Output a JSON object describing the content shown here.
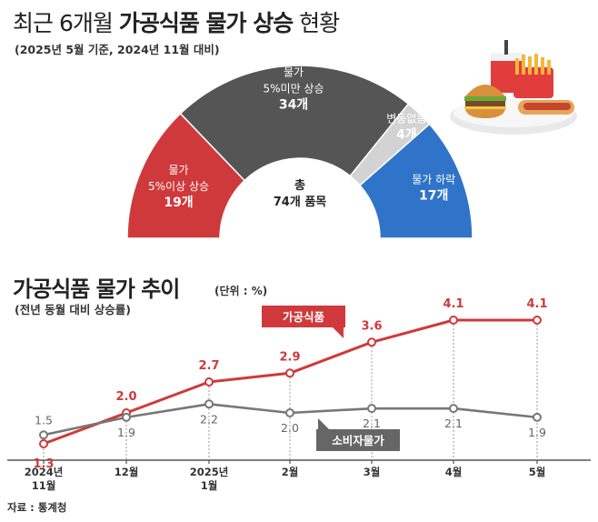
{
  "header": {
    "title_light": "최근 6개월 ",
    "title_bold": "가공식품 물가 상승",
    "title_tail": " 현황",
    "subtitle": "(2025년 5월 기준, 2024년 11월 대비)"
  },
  "donut": {
    "center_line1": "총",
    "center_line2": "74개 품목",
    "segments": [
      {
        "label1": "물가",
        "label2": "5%이상 상승",
        "count": "19개",
        "value": 19,
        "color": "#d0393b"
      },
      {
        "label1": "물가",
        "label2": "5%미만 상승",
        "count": "34개",
        "value": 34,
        "color": "#555555"
      },
      {
        "label1": "변동없음",
        "label2": "",
        "count": "4개",
        "value": 4,
        "color": "#d3d3d3"
      },
      {
        "label1": "물가 하락",
        "label2": "",
        "count": "17개",
        "value": 17,
        "color": "#2f74c8"
      }
    ]
  },
  "trend": {
    "title": "가공식품 물가 추이",
    "unit": "(단위 : %)",
    "subtitle": "(전년 동월 대비 상승률)",
    "source": "자료 : 통계청"
  },
  "chart_data": {
    "type": "line",
    "categories": [
      "2024년\n11월",
      "12월",
      "2025년\n1월",
      "2월",
      "3월",
      "4월",
      "5월"
    ],
    "series": [
      {
        "name": "가공식품",
        "values": [
          1.3,
          2.0,
          2.7,
          2.9,
          3.6,
          4.1,
          4.1
        ],
        "labels": [
          "1.3",
          "2.0",
          "2.7",
          "2.9",
          "3.6",
          "4.1",
          "4.1"
        ],
        "color": "#d0393b"
      },
      {
        "name": "소비자물가",
        "values": [
          1.5,
          1.9,
          2.2,
          2.0,
          2.1,
          2.1,
          1.9
        ],
        "labels": [
          "1.5",
          "1.9",
          "2.2",
          "2.0",
          "2.1",
          "2.1",
          "1.9"
        ],
        "color": "#777777"
      }
    ],
    "ylim": [
      1.0,
      4.6
    ]
  }
}
